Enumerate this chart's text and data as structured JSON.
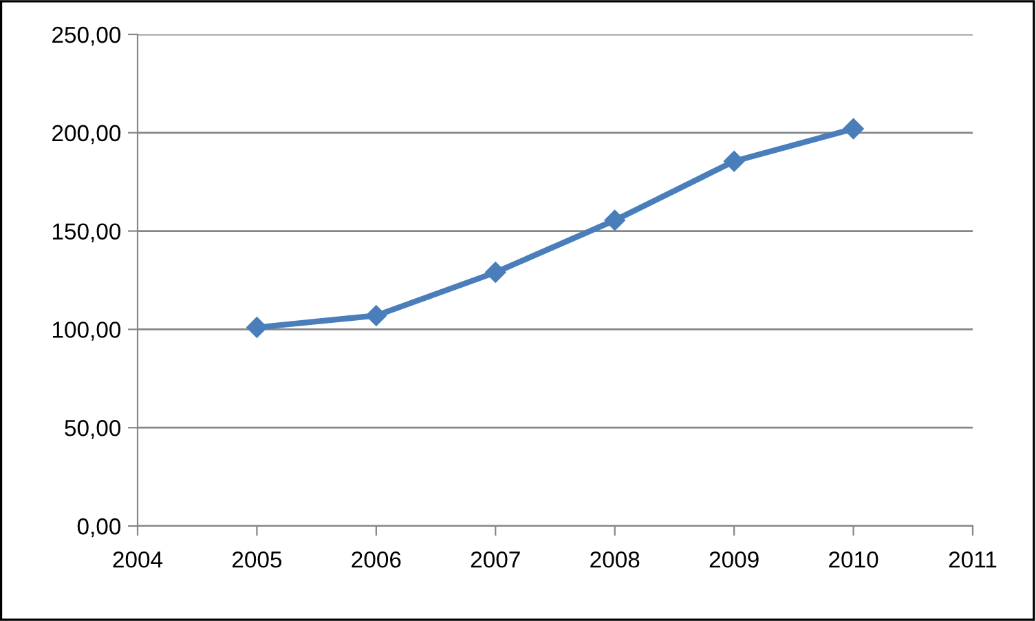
{
  "chart_data": {
    "type": "line",
    "x": [
      2005,
      2006,
      2007,
      2008,
      2009,
      2010
    ],
    "series": [
      {
        "color": "#4a7ebb",
        "values": [
          101,
          107,
          129,
          155.5,
          185.5,
          202
        ]
      }
    ],
    "xlim": [
      2004,
      2011
    ],
    "xticks": [
      2004,
      2005,
      2006,
      2007,
      2008,
      2009,
      2010,
      2011
    ],
    "ylim": [
      0,
      250
    ],
    "yticks": [
      {
        "value": 0,
        "label": "0,00"
      },
      {
        "value": 50,
        "label": "50,00"
      },
      {
        "value": 100,
        "label": "100,00"
      },
      {
        "value": 150,
        "label": "150,00"
      },
      {
        "value": 200,
        "label": "200,00"
      },
      {
        "value": 250,
        "label": "250,00"
      }
    ],
    "grid": "y",
    "marker": "diamond",
    "line_style": "solid",
    "legend": false
  }
}
